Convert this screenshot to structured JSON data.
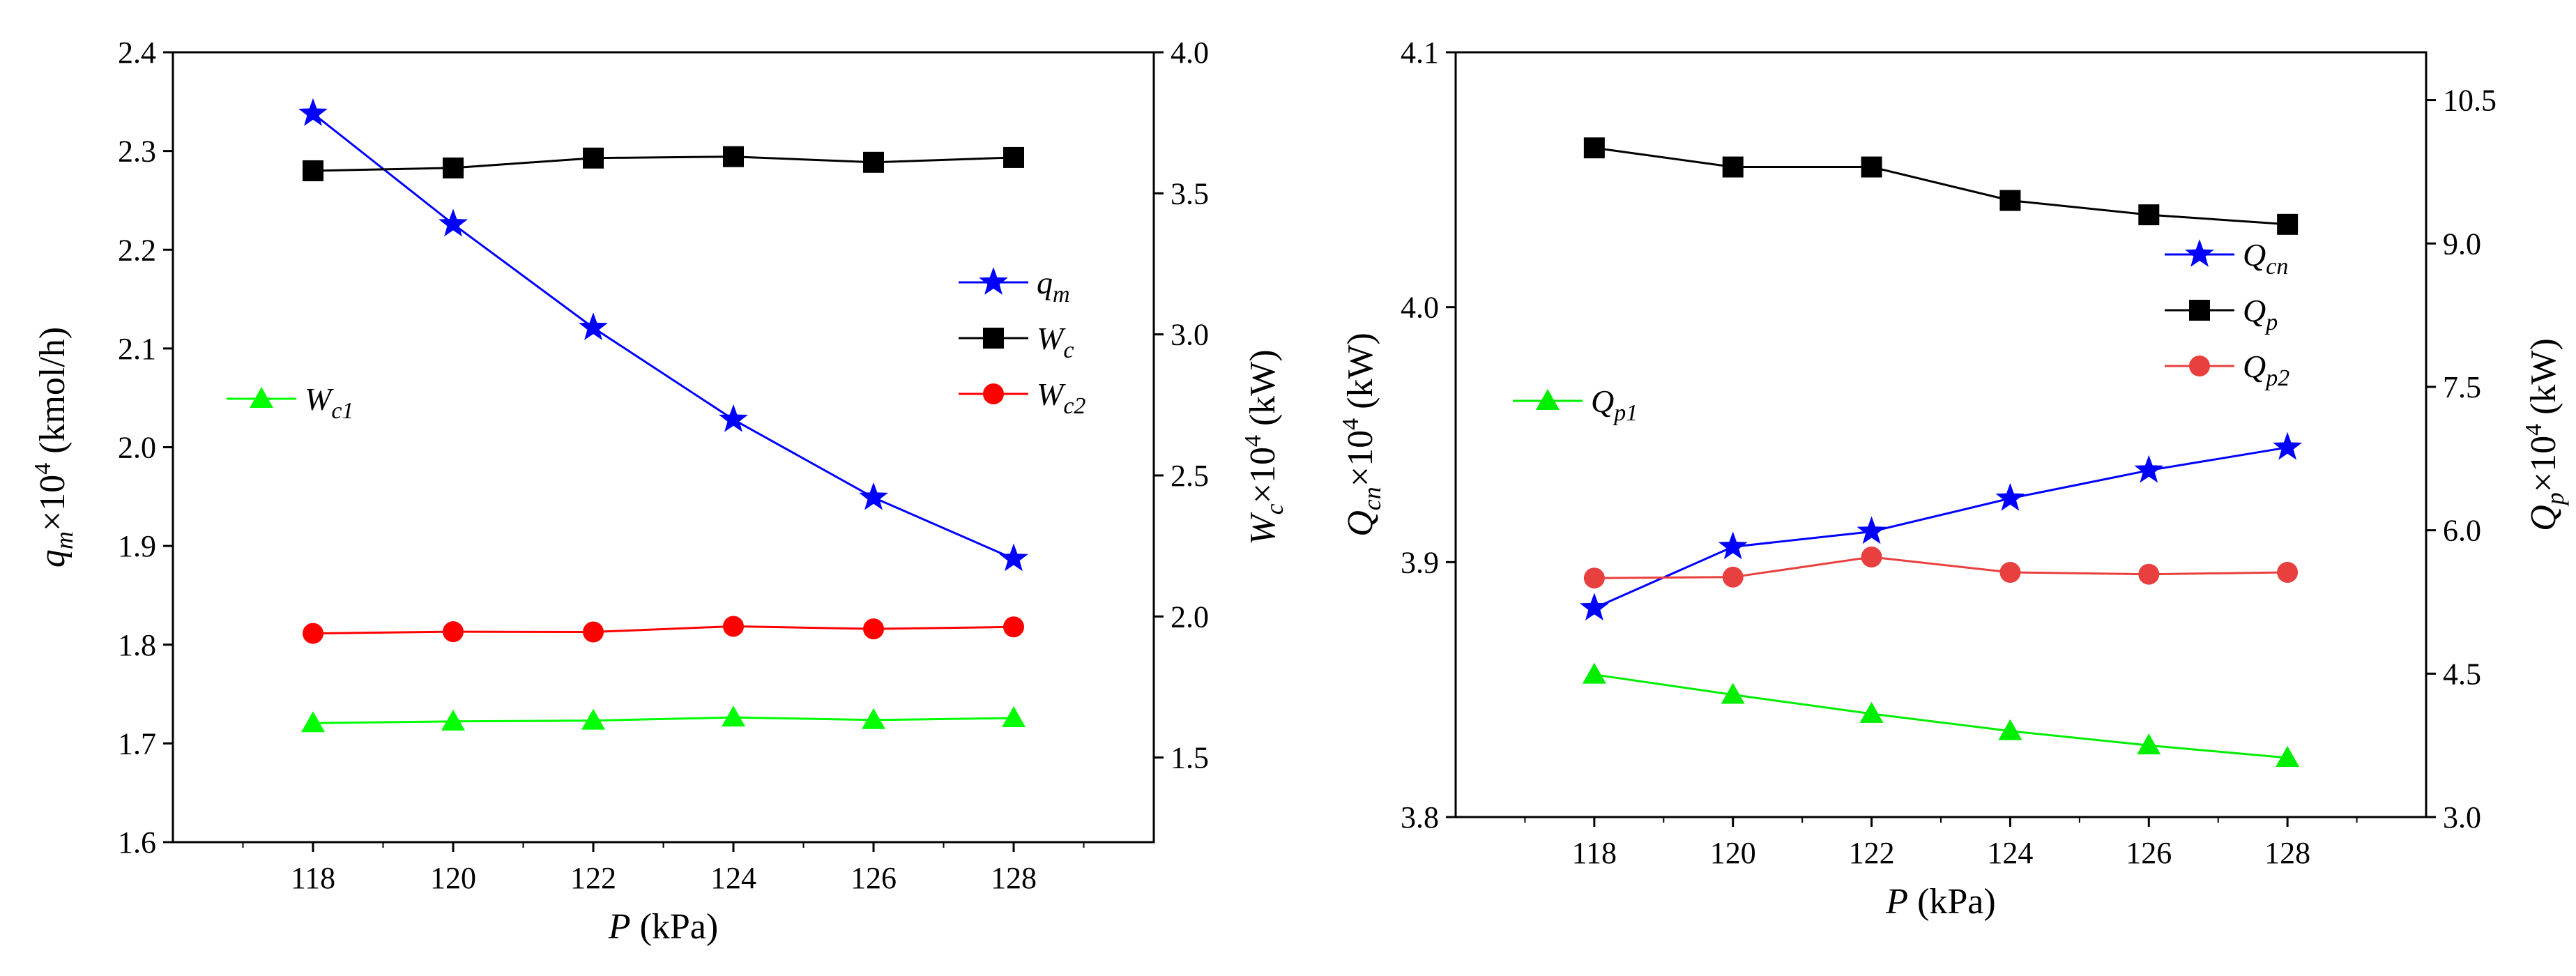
{
  "chart_data": [
    {
      "type": "line",
      "x": [
        118,
        120,
        122,
        124,
        126,
        128
      ],
      "xlabel": {
        "var": "P",
        "unit": " (kPa)"
      },
      "xlim": [
        116,
        130
      ],
      "x_ticks": [
        "118",
        "120",
        "122",
        "124",
        "126",
        "128"
      ],
      "y_left": {
        "label": {
          "base": "q",
          "sub": "m",
          "mid": "×10",
          "sup": "4",
          "unit": " (kmol/h)"
        },
        "lim": [
          1.6,
          2.4
        ],
        "ticks": [
          "1.6",
          "1.7",
          "1.8",
          "1.9",
          "2.0",
          "2.1",
          "2.2",
          "2.3",
          "2.4"
        ]
      },
      "y_right": {
        "label": {
          "base": "W",
          "sub": "c",
          "mid": "×10",
          "sup": "4",
          "unit": " (kW)"
        },
        "lim": [
          1.2,
          4.0
        ],
        "ticks": [
          "1.5",
          "2.0",
          "2.5",
          "3.0",
          "3.5",
          "4.0"
        ]
      },
      "series": [
        {
          "name": "q",
          "sub": "m",
          "axis": "left",
          "marker": "star",
          "color": "#0000ff",
          "values": [
            2.338,
            2.226,
            2.121,
            2.028,
            1.949,
            1.887
          ]
        },
        {
          "name": "W",
          "sub": "c",
          "axis": "right",
          "marker": "square",
          "color": "#000000",
          "values": [
            3.58,
            3.59,
            3.625,
            3.63,
            3.61,
            3.627
          ]
        },
        {
          "name": "W",
          "sub": "c2",
          "axis": "right",
          "marker": "circle",
          "color": "#ff0000",
          "values": [
            1.94,
            1.946,
            1.945,
            1.965,
            1.956,
            1.963
          ]
        },
        {
          "name": "W",
          "sub": "c1",
          "axis": "right",
          "marker": "triangle",
          "color": "#00ff00",
          "values": [
            1.622,
            1.628,
            1.631,
            1.642,
            1.633,
            1.64
          ]
        }
      ]
    },
    {
      "type": "line",
      "x": [
        118,
        120,
        122,
        124,
        126,
        128
      ],
      "xlabel": {
        "var": "P",
        "unit": " (kPa)"
      },
      "xlim": [
        116,
        130
      ],
      "x_ticks": [
        "118",
        "120",
        "122",
        "124",
        "126",
        "128"
      ],
      "y_left": {
        "label": {
          "base": "Q",
          "sub": "cn",
          "mid": "×10",
          "sup": "4",
          "unit": " (kW)"
        },
        "lim": [
          3.8,
          4.1
        ],
        "ticks": [
          "3.8",
          "3.9",
          "4.0",
          "4.1"
        ]
      },
      "y_right": {
        "label": {
          "base": "Q",
          "sub": "p",
          "mid": "×10",
          "sup": "4",
          "unit": " (kW)"
        },
        "lim": [
          3.0,
          11.0
        ],
        "ticks": [
          "3.0",
          "4.5",
          "6.0",
          "7.5",
          "9.0",
          "10.5"
        ]
      },
      "series": [
        {
          "name": "Q",
          "sub": "cn",
          "axis": "left",
          "marker": "star",
          "color": "#0000ff",
          "values": [
            3.882,
            3.906,
            3.912,
            3.925,
            3.936,
            3.945
          ]
        },
        {
          "name": "Q",
          "sub": "p",
          "axis": "right",
          "marker": "square",
          "color": "#000000",
          "values": [
            10.0,
            9.8,
            9.8,
            9.45,
            9.3,
            9.2
          ]
        },
        {
          "name": "Q",
          "sub": "p2",
          "axis": "right",
          "marker": "circle",
          "color": "#e8403f",
          "values": [
            5.5,
            5.51,
            5.72,
            5.56,
            5.54,
            5.56
          ]
        },
        {
          "name": "Q",
          "sub": "p1",
          "axis": "right",
          "marker": "triangle",
          "color": "#00ee00",
          "values": [
            4.49,
            4.28,
            4.08,
            3.9,
            3.75,
            3.62
          ]
        }
      ]
    }
  ]
}
